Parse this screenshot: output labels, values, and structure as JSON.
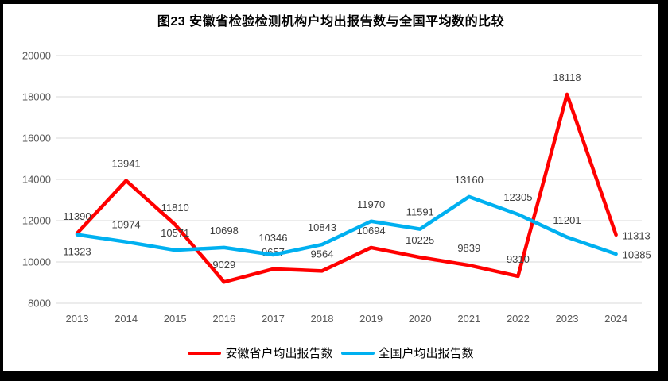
{
  "title": "图23 安徽省检验检测机构户均出报告数与全国平均数的比较",
  "chart_data": {
    "type": "line",
    "title": "图23 安徽省检验检测机构户均出报告数与全国平均数的比较",
    "categories": [
      "2013",
      "2014",
      "2015",
      "2016",
      "2017",
      "2018",
      "2019",
      "2020",
      "2021",
      "2022",
      "2023",
      "2024"
    ],
    "series": [
      {
        "key": "anhui",
        "name": "安徽省户均出报告数",
        "color": "#FF0000",
        "values": [
          11390,
          13941,
          11810,
          9029,
          9657,
          9564,
          10694,
          10225,
          9839,
          9310,
          18118,
          11313
        ],
        "label_pos": [
          "above",
          "above",
          "above",
          "above",
          "above",
          "above",
          "above",
          "above",
          "above",
          "above",
          "above",
          "right"
        ]
      },
      {
        "key": "national",
        "name": "全国户均出报告数",
        "color": "#00B0F0",
        "values": [
          11323,
          10974,
          10571,
          10698,
          10346,
          10843,
          11970,
          11591,
          13160,
          12305,
          11201,
          10385
        ],
        "label_pos": [
          "below",
          "above",
          "above",
          "above",
          "above",
          "above",
          "above",
          "above",
          "above",
          "above",
          "above",
          "right"
        ]
      }
    ],
    "ylim": [
      8000,
      20000
    ],
    "yticks": [
      20000,
      18000,
      16000,
      14000,
      12000,
      10000,
      8000
    ],
    "grid": true,
    "gridline_color": "#D9D9D9",
    "axis_label_color": "#595959",
    "data_label_color": "#404040",
    "legend_position": "bottom"
  }
}
